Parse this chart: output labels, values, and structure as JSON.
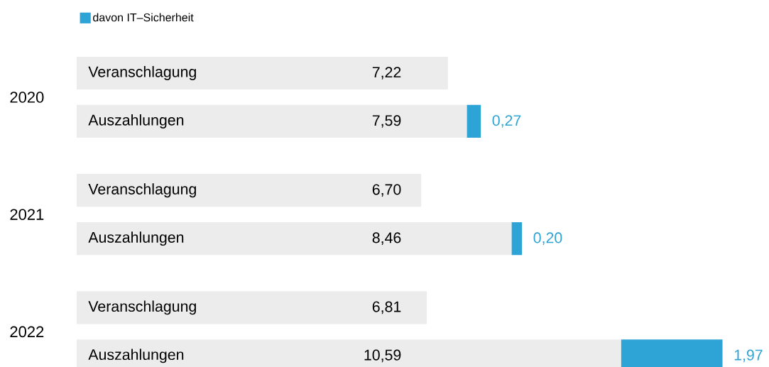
{
  "chart_data": {
    "type": "bar",
    "orientation": "horizontal",
    "stacked": true,
    "categories": [
      "Veranschlagung",
      "Auszahlungen",
      "Veranschlagung",
      "Auszahlungen",
      "Veranschlagung",
      "Auszahlungen"
    ],
    "series": [
      {
        "color": "#ececec",
        "values": [
          7.22,
          7.59,
          6.7,
          8.46,
          6.81,
          10.59
        ],
        "value_labels": [
          "7,22",
          "7,59",
          "6,70",
          "8,46",
          "6,81",
          "10,59"
        ]
      },
      {
        "name": "davon IT–Sicherheit",
        "color": "#2ea3d5",
        "values": [
          null,
          0.27,
          null,
          0.2,
          null,
          1.97
        ],
        "value_labels": [
          null,
          "0,27",
          null,
          "0,20",
          null,
          "1,97"
        ]
      }
    ],
    "annotations": [
      "2020",
      "2021",
      "2022"
    ],
    "legend": "top left"
  }
}
